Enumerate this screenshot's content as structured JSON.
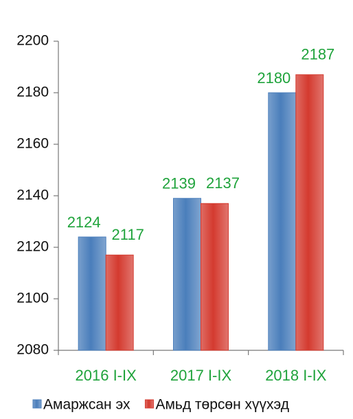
{
  "chart_data": {
    "type": "bar",
    "categories": [
      "2016 I-IX",
      "2017 I-IX",
      "2018 I-IX"
    ],
    "series": [
      {
        "name": "Амаржсан эх",
        "color": "#4a7ebb",
        "values": [
          2124,
          2139,
          2180
        ]
      },
      {
        "name": "Амьд төрсөн хүүхэд",
        "color": "#d43a2f",
        "values": [
          2117,
          2137,
          2187
        ]
      }
    ],
    "ylim": [
      2080,
      2200
    ],
    "yticks": [
      2080,
      2100,
      2120,
      2140,
      2160,
      2180,
      2200
    ],
    "legend": "bottom"
  }
}
